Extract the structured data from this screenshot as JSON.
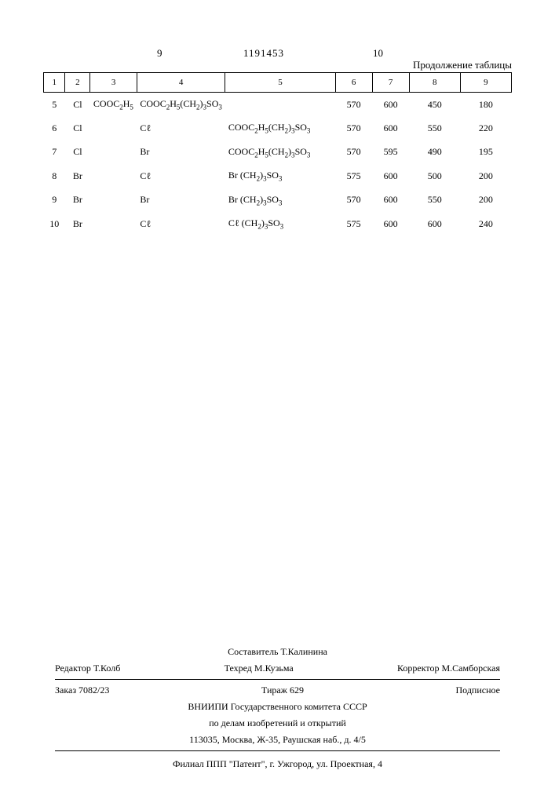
{
  "page_left": "9",
  "doc_number": "1191453",
  "page_right": "10",
  "continuation": "Продолжение таблицы",
  "table": {
    "headers": [
      "1",
      "2",
      "3",
      "4",
      "5",
      "6",
      "7",
      "8",
      "9"
    ],
    "rows": [
      {
        "c1": "5",
        "c2": "Cl",
        "c3": "COOC₂H₅",
        "c4": "COOC₂H₅(CH₂)₃SO₃",
        "c5": "",
        "c6": "570",
        "c7": "600",
        "c8": "450",
        "c9": "180"
      },
      {
        "c1": "6",
        "c2": "Cl",
        "c3": "",
        "c4": "Cl",
        "c5": "COOC₂H₅(CH₂)₃SO₃",
        "c6": "570",
        "c7": "600",
        "c8": "550",
        "c9": "220"
      },
      {
        "c1": "7",
        "c2": "Cl",
        "c3": "",
        "c4": "Br",
        "c5": "COOC₂H₅(CH₂)₃SO₃",
        "c6": "570",
        "c7": "595",
        "c8": "490",
        "c9": "195"
      },
      {
        "c1": "8",
        "c2": "Br",
        "c3": "",
        "c4": "Cl",
        "c5": "Br   (CH₂)₃SO₃",
        "c6": "575",
        "c7": "600",
        "c8": "500",
        "c9": "200"
      },
      {
        "c1": "9",
        "c2": "Br",
        "c3": "",
        "c4": "Br",
        "c5": "Br   (CH₂)₃SO₃",
        "c6": "570",
        "c7": "600",
        "c8": "550",
        "c9": "200"
      },
      {
        "c1": "10",
        "c2": "Br",
        "c3": "",
        "c4": "Cl",
        "c5": "Cl   (CH₂)₃SO₃",
        "c6": "575",
        "c7": "600",
        "c8": "600",
        "c9": "240"
      }
    ],
    "col_widths": [
      "5%",
      "6%",
      "10%",
      "10%",
      "25%",
      "9%",
      "9%",
      "13%",
      "13%"
    ]
  },
  "footer": {
    "compiler": "Составитель Т.Калинина",
    "editor": "Редактор Т.Колб",
    "techred": "Техред М.Кузьма",
    "corrector": "Корректор М.Самборская",
    "order": "Заказ 7082/23",
    "tirage": "Тираж 629",
    "sub": "Подписное",
    "org1": "ВНИИПИ Государственного комитета СССР",
    "org2": "по делам изобретений и открытий",
    "addr": "113035, Москва, Ж-35, Раушская наб., д. 4/5",
    "branch": "Филиал ППП \"Патент\", г. Ужгород, ул. Проектная, 4"
  }
}
